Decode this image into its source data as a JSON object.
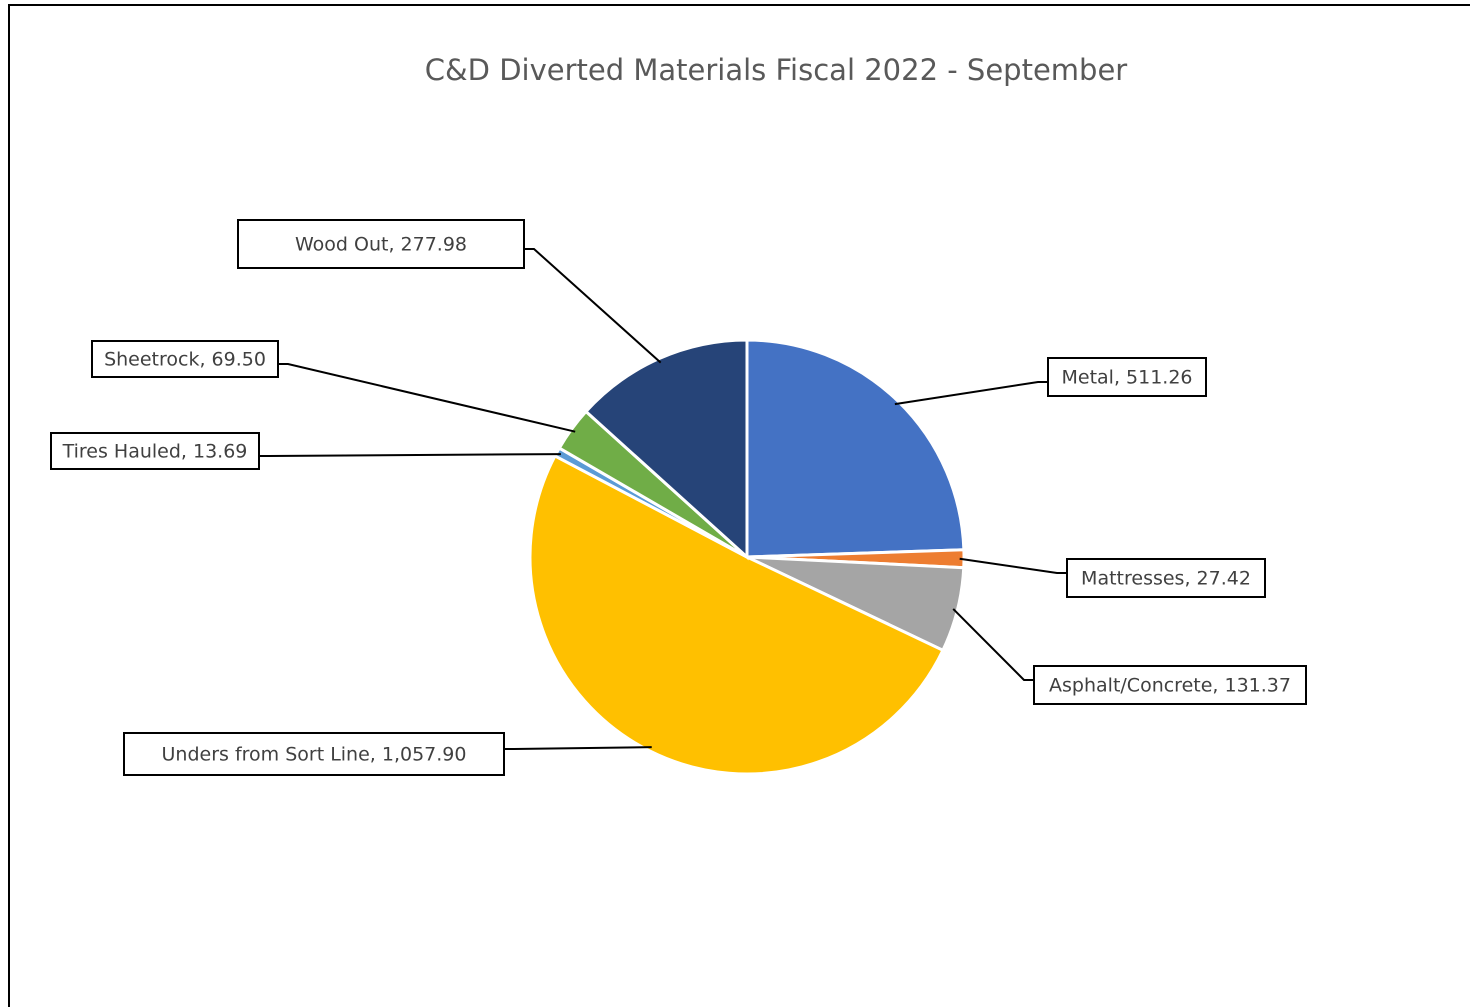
{
  "chart_data": {
    "type": "pie",
    "title": "C&D Diverted Materials Fiscal 2022 - September",
    "values": [
      511.26,
      27.42,
      131.37,
      1057.9,
      13.69,
      69.5,
      277.98
    ],
    "value_labels": [
      "Metal, 511.26",
      "Mattresses, 27.42",
      "Asphalt/Concrete, 131.37",
      "Unders from Sort Line, 1,057.90",
      "Tires Hauled, 13.69",
      "Sheetrock, 69.50",
      "Wood Out, 277.98"
    ],
    "colors": [
      "#4472c4",
      "#ed7d31",
      "#a5a5a5",
      "#ffc000",
      "#5b9bd5",
      "#70ad47",
      "#264478"
    ]
  }
}
